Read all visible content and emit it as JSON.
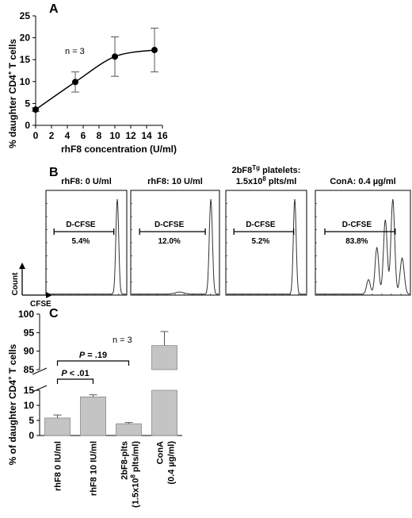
{
  "panel_a": {
    "letter": "A",
    "ylabel_main": "% daughter CD4",
    "ylabel_sup": "+",
    "ylabel_tail": " T cells",
    "xlabel": "rhF8 concentration (U/ml)",
    "annotation": "n = 3"
  },
  "panel_b": {
    "letter": "B",
    "count_label": "Count",
    "cfse_label": "CFSE",
    "histograms": [
      {
        "title1": "rhF8: 0 U/ml",
        "title2": "",
        "gate": "D-CFSE",
        "pct": "5.4%"
      },
      {
        "title1": "rhF8: 10 U/ml",
        "title2": "",
        "gate": "D-CFSE",
        "pct": "12.0%"
      },
      {
        "title1": "2bF8",
        "title1_sup": "Tg",
        "title1_tail": " platelets:",
        "title2": "1.5x10",
        "title2_sup": "8",
        "title2_tail": " plts/ml",
        "gate": "D-CFSE",
        "pct": "5.2%"
      },
      {
        "title1": "ConA: 0.4 µg/ml",
        "title2": "",
        "gate": "D-CFSE",
        "pct": "83.8%"
      }
    ]
  },
  "panel_c": {
    "letter": "C",
    "ylabel_main": "% of daughter CD4",
    "ylabel_sup": "+",
    "ylabel_tail": " T cells",
    "annotation": "n = 3",
    "sig1": "P < .01",
    "sig2": "P = .19",
    "cat_labels": [
      [
        "rhF8 0 IU/ml"
      ],
      [
        "rhF8 10 IU/ml"
      ],
      [
        "2bF8-plts",
        "(1.5x10",
        "8",
        " plts/ml)"
      ],
      [
        "ConA",
        "(0.4 µg/ml)"
      ]
    ]
  },
  "chart_data": [
    {
      "type": "line",
      "x": [
        0,
        5,
        10,
        15
      ],
      "y": [
        3.6,
        9.9,
        15.7,
        17.2
      ],
      "error": [
        0.4,
        2.3,
        4.5,
        5.0
      ],
      "xlabel": "rhF8 concentration (U/ml)",
      "ylabel": "% daughter CD4+ T cells",
      "xlim": [
        0,
        16
      ],
      "ylim": [
        0,
        25
      ],
      "xticks": [
        0,
        2,
        4,
        6,
        8,
        10,
        12,
        14,
        16
      ],
      "yticks": [
        0,
        5,
        10,
        15,
        20,
        25
      ],
      "annotations": [
        "n = 3"
      ]
    },
    {
      "type": "histogram-panels",
      "xlabel": "CFSE",
      "ylabel": "Count",
      "panels": [
        {
          "title": "rhF8: 0 U/ml",
          "gate": "D-CFSE",
          "value_pct": 5.4
        },
        {
          "title": "rhF8: 10 U/ml",
          "gate": "D-CFSE",
          "value_pct": 12.0
        },
        {
          "title": "2bF8Tg platelets: 1.5x10^8 plts/ml",
          "gate": "D-CFSE",
          "value_pct": 5.2
        },
        {
          "title": "ConA: 0.4 µg/ml",
          "gate": "D-CFSE",
          "value_pct": 83.8
        }
      ]
    },
    {
      "type": "bar",
      "categories": [
        "rhF8 0 IU/ml",
        "rhF8 10 IU/ml",
        "2bF8-plts (1.5x10^8 plts/ml)",
        "ConA (0.4 µg/ml)"
      ],
      "values": [
        5.8,
        12.8,
        3.9,
        91.5
      ],
      "error": [
        1.0,
        0.7,
        0.4,
        3.8
      ],
      "ylabel": "% of daughter CD4+ T cells",
      "yticks_lower": [
        0,
        5,
        10,
        15
      ],
      "yticks_upper": [
        85,
        90,
        95,
        100
      ],
      "axis_break": [
        15,
        85
      ],
      "annotations": [
        "n = 3",
        "P < .01",
        "P = .19"
      ]
    }
  ]
}
